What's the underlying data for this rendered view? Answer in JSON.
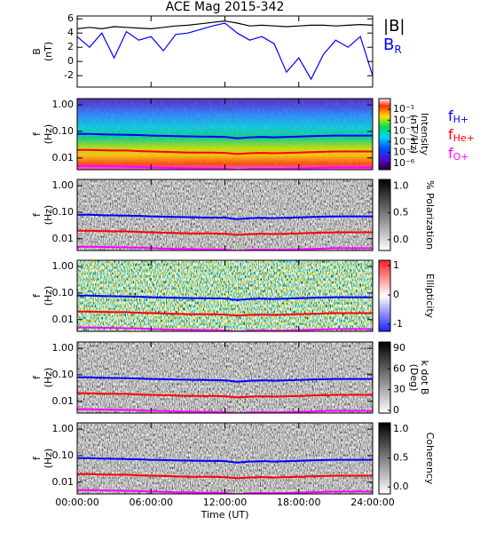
{
  "chart_data": [
    {
      "type": "line",
      "title": "ACE Mag 2015-342",
      "y_label": "B",
      "y_unit": "(nT)",
      "xlim": [
        0,
        24
      ],
      "ylim": [
        -3.6,
        6.4
      ],
      "yticks": [
        -2,
        0,
        2,
        4,
        6
      ],
      "x": [
        0,
        1,
        2,
        3,
        4,
        5,
        6,
        7,
        8,
        9,
        10,
        11,
        12,
        13,
        14,
        15,
        16,
        17,
        18,
        19,
        20,
        21,
        22,
        23,
        24
      ],
      "series": [
        {
          "name": "|B|",
          "color": "#000000",
          "values": [
            4.6,
            4.8,
            4.6,
            4.9,
            4.8,
            4.7,
            4.6,
            4.8,
            5.0,
            5.1,
            5.3,
            5.5,
            5.7,
            5.4,
            5.0,
            5.1,
            5.0,
            4.9,
            5.0,
            5.1,
            5.1,
            5.0,
            5.1,
            5.2,
            5.1
          ]
        },
        {
          "name": "B",
          "subscript": "R",
          "color": "#0000ff",
          "values": [
            3.5,
            2.0,
            4.0,
            0.5,
            4.2,
            3.0,
            3.5,
            1.5,
            3.8,
            4.0,
            4.5,
            5.0,
            5.4,
            4.0,
            3.0,
            3.5,
            2.5,
            -1.5,
            0.5,
            -2.5,
            1.0,
            3.0,
            2.0,
            3.5,
            -2.0
          ]
        }
      ]
    },
    {
      "type": "spectrogram",
      "y_label": "f",
      "y_unit": "(Hz)",
      "ylog": true,
      "xlim": [
        0,
        24
      ],
      "ylim": [
        0.0036,
        1.73
      ],
      "yticks": [
        {
          "value": 1,
          "label": "1.00"
        },
        {
          "value": 0.1,
          "label": "0.10"
        },
        {
          "value": 0.01,
          "label": "0.01"
        }
      ],
      "colormap": "rainbow",
      "colorbar": {
        "label": "Intensity",
        "unit": "(nT²/Hz)",
        "log": true,
        "lim": [
          2.6e-07,
          1
        ],
        "ticks": [
          {
            "value": 0.1,
            "label": "10⁻¹"
          },
          {
            "value": 0.01,
            "label": "10⁻²"
          },
          {
            "value": 0.001,
            "label": "10⁻³"
          },
          {
            "value": 0.0001,
            "label": "10⁻⁴"
          },
          {
            "value": 1e-05,
            "label": "10⁻⁵"
          },
          {
            "value": 1e-06,
            "label": "10⁻⁶"
          }
        ]
      },
      "x": [
        0,
        1,
        2,
        3,
        4,
        5,
        6,
        7,
        8,
        9,
        10,
        11,
        12,
        13,
        14,
        15,
        16,
        17,
        18,
        19,
        20,
        21,
        22,
        23,
        24
      ],
      "series": [
        {
          "name": "f",
          "subscript": "H+",
          "color": "#0000ff",
          "values": [
            0.08,
            0.08,
            0.078,
            0.076,
            0.075,
            0.073,
            0.07,
            0.068,
            0.066,
            0.065,
            0.064,
            0.063,
            0.062,
            0.055,
            0.06,
            0.062,
            0.06,
            0.062,
            0.064,
            0.066,
            0.068,
            0.07,
            0.07,
            0.07,
            0.07
          ]
        },
        {
          "name": "f",
          "subscript": "He+",
          "color": "#ff0000",
          "values": [
            0.02,
            0.02,
            0.0195,
            0.019,
            0.019,
            0.018,
            0.0175,
            0.017,
            0.0165,
            0.016,
            0.016,
            0.016,
            0.0155,
            0.014,
            0.015,
            0.0155,
            0.015,
            0.0155,
            0.016,
            0.0165,
            0.017,
            0.0175,
            0.0175,
            0.0175,
            0.0175
          ]
        },
        {
          "name": "f",
          "subscript": "O+",
          "color": "#ff00ff",
          "values": [
            0.005,
            0.005,
            0.0049,
            0.0048,
            0.0047,
            0.0046,
            0.0044,
            0.0043,
            0.0041,
            0.0041,
            0.004,
            0.004,
            0.0039,
            0.0035,
            0.0038,
            0.0039,
            0.0038,
            0.0039,
            0.004,
            0.0041,
            0.0043,
            0.0044,
            0.0044,
            0.0044,
            0.0044
          ]
        }
      ]
    },
    {
      "type": "spectrogram",
      "y_label": "f",
      "y_unit": "(Hz)",
      "ylog": true,
      "xlim": [
        0,
        24
      ],
      "ylim": [
        0.0036,
        1.73
      ],
      "yticks": [
        {
          "value": 1,
          "label": "1.00"
        },
        {
          "value": 0.1,
          "label": "0.10"
        },
        {
          "value": 0.01,
          "label": "0.01"
        }
      ],
      "colormap": "gray",
      "colorbar": {
        "label": "% Polarization",
        "lim": [
          -0.2,
          1.12
        ],
        "ticks": [
          {
            "value": 1,
            "label": "1.0"
          },
          0.5,
          {
            "value": 0,
            "label": "0.0"
          }
        ]
      }
    },
    {
      "type": "spectrogram",
      "y_label": "f",
      "y_unit": "(Hz)",
      "ylog": true,
      "xlim": [
        0,
        24
      ],
      "ylim": [
        0.0036,
        1.73
      ],
      "yticks": [
        {
          "value": 1,
          "label": "1.00"
        },
        {
          "value": 0.1,
          "label": "0.10"
        },
        {
          "value": 0.01,
          "label": "0.01"
        }
      ],
      "colormap": "bluered",
      "colorbar": {
        "label": "Ellipticity",
        "lim": [
          -1.24,
          1.18
        ],
        "ticks": [
          1,
          0,
          -1
        ]
      }
    },
    {
      "type": "spectrogram",
      "y_label": "f",
      "y_unit": "(Hz)",
      "ylog": true,
      "xlim": [
        0,
        24
      ],
      "ylim": [
        0.0036,
        1.73
      ],
      "yticks": [
        {
          "value": 1,
          "label": "1.00"
        },
        {
          "value": 0.1,
          "label": "0.10"
        },
        {
          "value": 0.01,
          "label": "0.01"
        }
      ],
      "colormap": "gray",
      "colorbar": {
        "label": "k dot B",
        "unit": "(Deg)",
        "lim": [
          -4,
          99
        ],
        "ticks": [
          90,
          60,
          30,
          0
        ]
      }
    },
    {
      "type": "spectrogram",
      "y_label": "f",
      "y_unit": "(Hz)",
      "ylog": true,
      "xlim": [
        0,
        24
      ],
      "ylim": [
        0.0036,
        1.73
      ],
      "yticks": [
        {
          "value": 1,
          "label": "1.00"
        },
        {
          "value": 0.1,
          "label": "0.10"
        },
        {
          "value": 0.01,
          "label": "0.01"
        }
      ],
      "colormap": "gray",
      "colorbar": {
        "label": "Coherency",
        "lim": [
          -0.12,
          1.11
        ],
        "ticks": [
          {
            "value": 1,
            "label": "1.0"
          },
          0.5,
          {
            "value": 0,
            "label": "0.0"
          }
        ]
      },
      "x_label": "Time (UT)",
      "xticks": [
        {
          "value": 0,
          "label": "00:00:00"
        },
        {
          "value": 6,
          "label": "06:00:00"
        },
        {
          "value": 12,
          "label": "12:00:00"
        },
        {
          "value": 18,
          "label": "18:00:00"
        },
        {
          "value": 24,
          "label": "24:00:00"
        }
      ]
    }
  ]
}
